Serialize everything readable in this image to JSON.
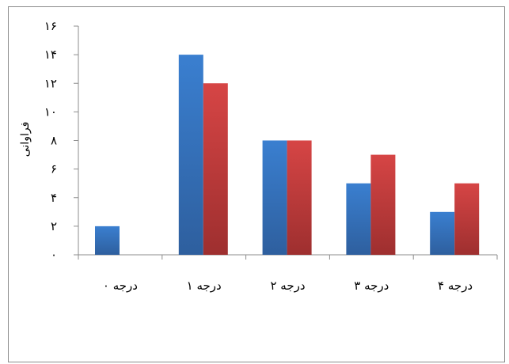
{
  "chart_data": {
    "type": "bar",
    "ylabel": "فراوانی",
    "xlabel": "",
    "ylim": [
      0,
      16
    ],
    "yticks": [
      0,
      2,
      4,
      6,
      8,
      10,
      12,
      14,
      16
    ],
    "ytick_labels": [
      "۰",
      "۲",
      "۴",
      "۶",
      "۸",
      "۱۰",
      "۱۲",
      "۱۴",
      "۱۶"
    ],
    "categories": [
      "درجه ۰",
      "درجه ۱",
      "درجه ۲",
      "درجه ۳",
      "درجه ۴"
    ],
    "series": [
      {
        "values": [
          2,
          14,
          8,
          5,
          3
        ],
        "color": "#3a78c9"
      },
      {
        "values": [
          0,
          12,
          8,
          7,
          5
        ],
        "color": "#c94040"
      }
    ],
    "grid": false,
    "legend": "none"
  },
  "colors": {
    "blue_dark": "#2e5f9e",
    "red_dark": "#9e2f2f",
    "axis": "#8c8c8c"
  }
}
